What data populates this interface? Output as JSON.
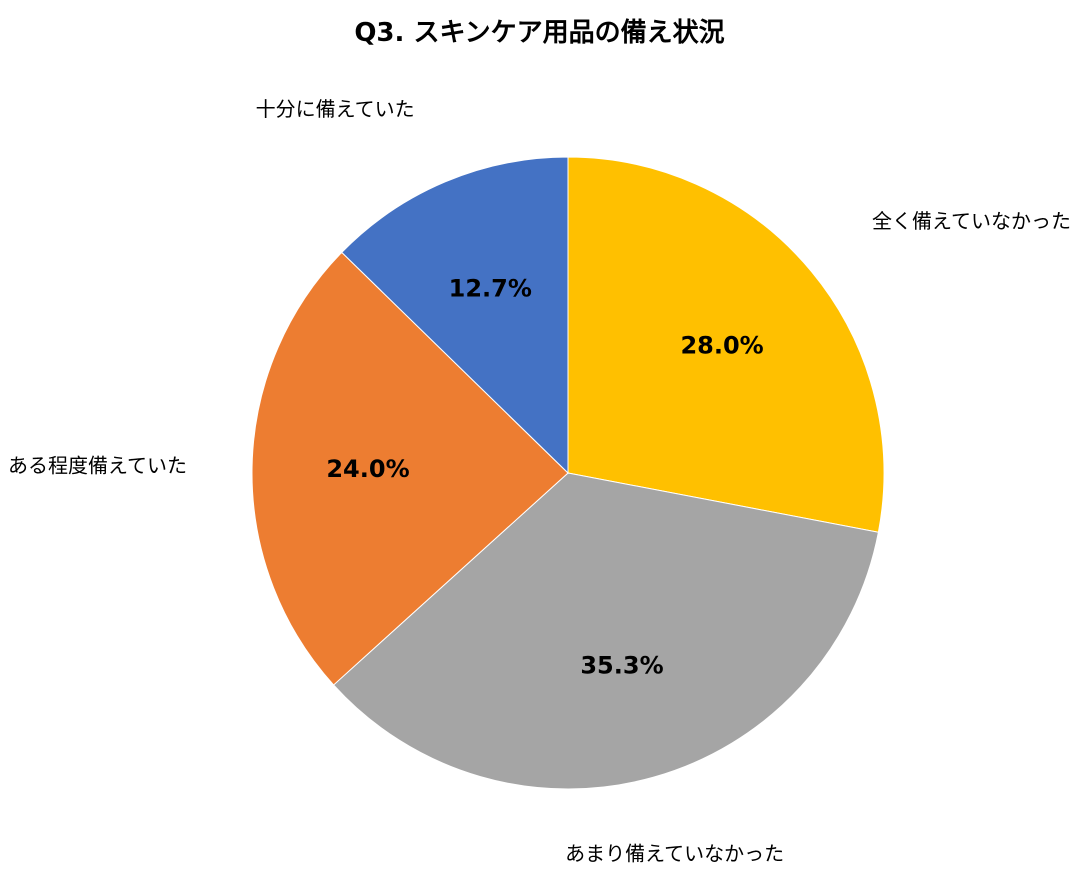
{
  "chart_data": {
    "type": "pie",
    "title": "Q3. スキンケア用品の備え状況",
    "start_angle_deg": 0,
    "direction": "clockwise",
    "slices": [
      {
        "label": "全く備えていなかった",
        "value": 28.0,
        "display": "28.0%",
        "color": "#FFC000"
      },
      {
        "label": "あまり備えていなかった",
        "value": 35.3,
        "display": "35.3%",
        "color": "#A5A5A5"
      },
      {
        "label": "ある程度備えていた",
        "value": 24.0,
        "display": "24.0%",
        "color": "#ED7D31"
      },
      {
        "label": "十分に備えていた",
        "value": 12.7,
        "display": "12.7%",
        "color": "#4472C4"
      }
    ]
  }
}
